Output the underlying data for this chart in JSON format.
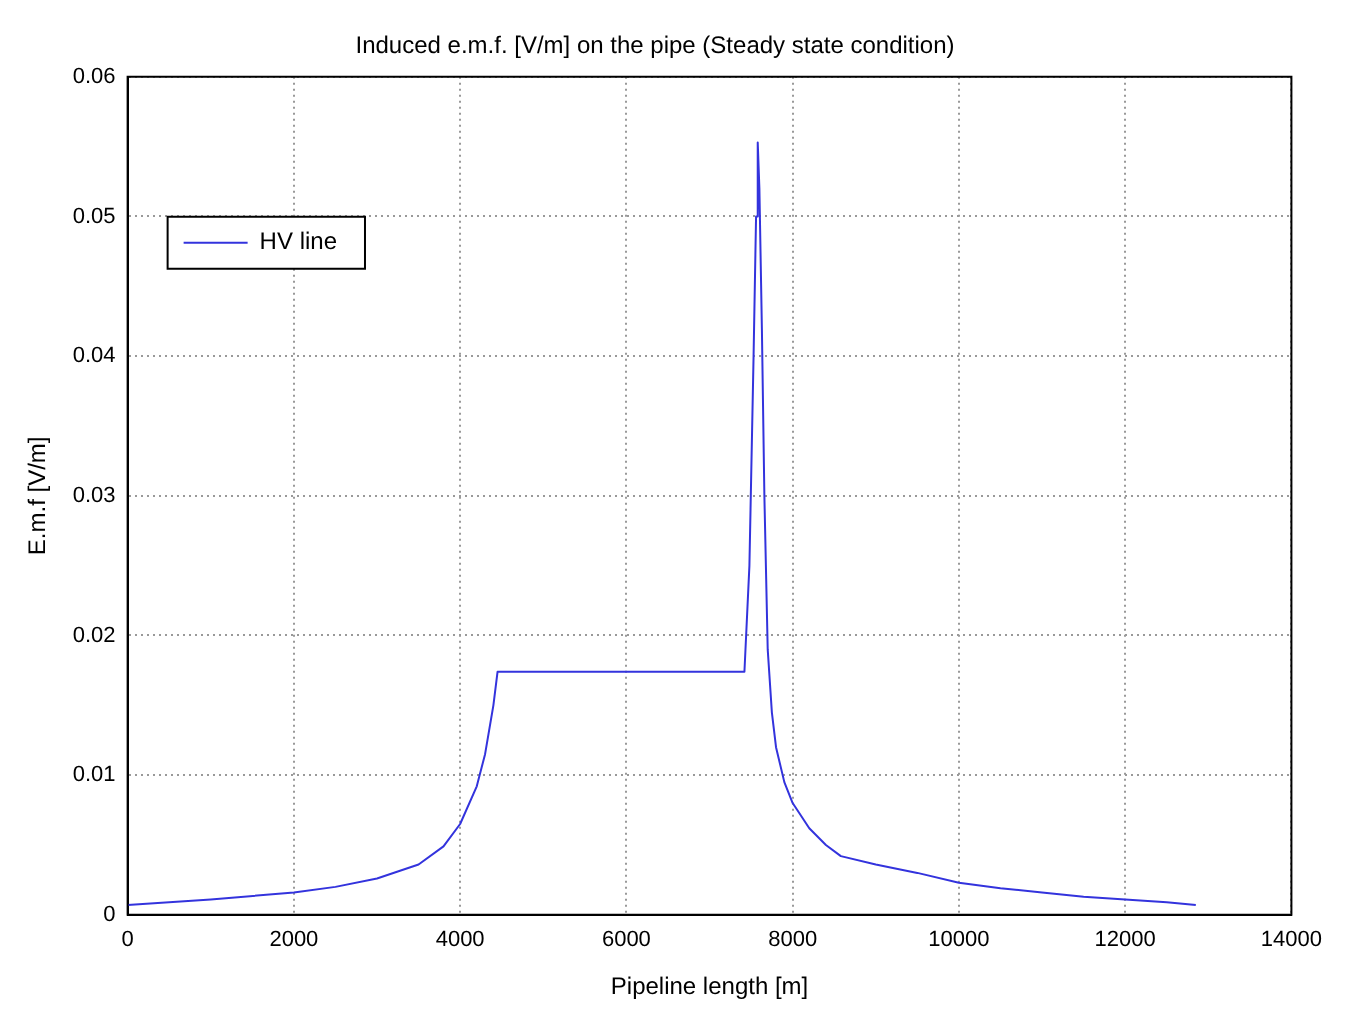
{
  "chart_data": {
    "type": "line",
    "title": "Induced e.m.f. [V/m] on the pipe (Steady state condition)",
    "xlabel": "Pipeline length [m]",
    "ylabel": "E.m.f [V/m]",
    "series": [
      {
        "name": "HV line",
        "color": "#3333dd",
        "x": [
          0,
          1000,
          2000,
          2500,
          3000,
          3500,
          3800,
          4000,
          4200,
          4300,
          4400,
          4450,
          7420,
          7480,
          7530,
          7560,
          7580,
          7600,
          7630,
          7660,
          7700,
          7750,
          7800,
          7900,
          8000,
          8200,
          8400,
          8580,
          9000,
          9500,
          10000,
          10500,
          11000,
          11500,
          12000,
          12500,
          12850
        ],
        "values": [
          0.0007,
          0.0011,
          0.0016,
          0.002,
          0.0026,
          0.0036,
          0.0049,
          0.0065,
          0.0092,
          0.0115,
          0.015,
          0.0174,
          0.0174,
          0.025,
          0.04,
          0.05,
          0.0553,
          0.052,
          0.042,
          0.03,
          0.019,
          0.0145,
          0.012,
          0.0095,
          0.008,
          0.0062,
          0.005,
          0.0042,
          0.0036,
          0.003,
          0.0023,
          0.0019,
          0.0016,
          0.0013,
          0.0011,
          0.0009,
          0.0007
        ]
      }
    ],
    "xlim": [
      0,
      14000
    ],
    "xticks": [
      0,
      2000,
      4000,
      6000,
      8000,
      10000,
      12000,
      14000
    ],
    "ylim": [
      0,
      0.06
    ],
    "yticks": [
      0,
      0.01,
      0.02,
      0.03,
      0.04,
      0.05,
      0.06
    ],
    "grid": true,
    "legend": "top left",
    "marker": "none",
    "line_style": "solid"
  }
}
